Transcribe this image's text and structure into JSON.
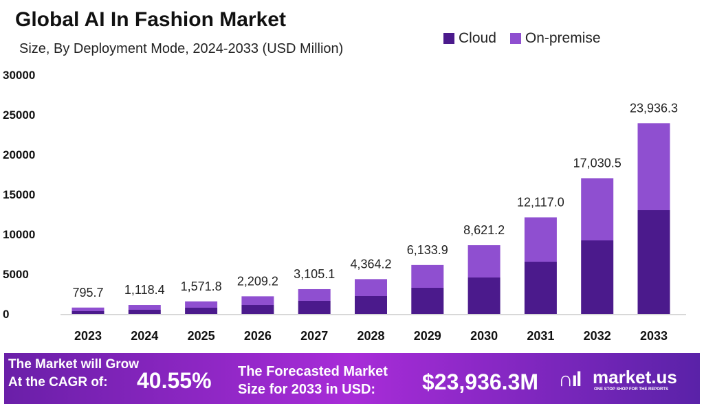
{
  "chart_data": {
    "type": "bar",
    "stacked": true,
    "title": "Global AI In Fashion Market",
    "subtitle": "Size, By Deployment Mode, 2024-2033 (USD Million)",
    "categories": [
      "2023",
      "2024",
      "2025",
      "2026",
      "2027",
      "2028",
      "2029",
      "2030",
      "2031",
      "2032",
      "2033"
    ],
    "series": [
      {
        "name": "Cloud",
        "color": "#4b1a8c",
        "values": [
          345,
          517,
          776,
          1120,
          1638,
          2241,
          3276,
          4570,
          6550,
          9224,
          13017
        ]
      },
      {
        "name": "On-premise",
        "color": "#8f4fd0",
        "values": [
          450.7,
          601.4,
          795.8,
          1089.2,
          1467.1,
          2123.2,
          2857.9,
          4051.2,
          5567.0,
          7806.5,
          10919.3
        ]
      }
    ],
    "totals": [
      "795.7",
      "1,118.4",
      "1,571.8",
      "2,209.2",
      "3,105.1",
      "4,364.2",
      "6,133.9",
      "8,621.2",
      "12,117.0",
      "17,030.5",
      "23,936.3"
    ],
    "ylim": [
      0,
      30000
    ],
    "yticks": [
      "0",
      "5000",
      "10000",
      "15000",
      "20000",
      "25000",
      "30000"
    ],
    "grid": false,
    "legend": "top-right"
  },
  "banner": {
    "cagr_label_1": "The Market will Grow",
    "cagr_label_2": "At the CAGR of:",
    "cagr_value": "40.55%",
    "forecast_label_1": "The Forecasted Market",
    "forecast_label_2": "Size for 2033 in USD:",
    "forecast_value": "$23,936.3M",
    "brand": "market.us",
    "tagline": "ONE STOP SHOP FOR THE REPORTS"
  }
}
